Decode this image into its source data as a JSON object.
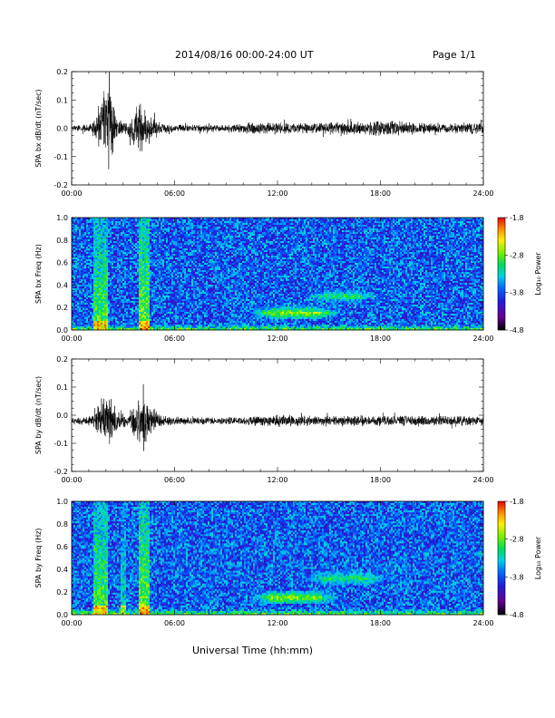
{
  "header": {
    "title": "2014/08/16  00:00-24:00 UT",
    "page": "Page 1/1"
  },
  "xaxis_title": "Universal Time (hh:mm)",
  "colors": {
    "line": "#000000",
    "background": "#ffffff"
  },
  "chart_data": [
    {
      "type": "line",
      "ylabel": "SPA bx dB/dt (nT/sec)",
      "xlim": [
        0,
        24
      ],
      "ylim": [
        -0.2,
        0.2
      ],
      "x_ticks": [
        "00:00",
        "06:00",
        "12:00",
        "18:00",
        "24:00"
      ],
      "y_ticks": [
        "0.2",
        "0.1",
        "0.0",
        "-0.1",
        "-0.2"
      ],
      "baseline": 0.0,
      "envelope": [
        {
          "t": 0.0,
          "amp": 0.01
        },
        {
          "t": 1.2,
          "amp": 0.02
        },
        {
          "t": 1.6,
          "amp": 0.09
        },
        {
          "t": 2.2,
          "amp": 0.2
        },
        {
          "t": 2.6,
          "amp": 0.04
        },
        {
          "t": 3.2,
          "amp": 0.02
        },
        {
          "t": 4.1,
          "amp": 0.11
        },
        {
          "t": 4.5,
          "amp": 0.05
        },
        {
          "t": 5.2,
          "amp": 0.02
        },
        {
          "t": 6.0,
          "amp": 0.015
        },
        {
          "t": 9.0,
          "amp": 0.015
        },
        {
          "t": 11.0,
          "amp": 0.025
        },
        {
          "t": 13.0,
          "amp": 0.02
        },
        {
          "t": 15.5,
          "amp": 0.025
        },
        {
          "t": 18.5,
          "amp": 0.03
        },
        {
          "t": 21.0,
          "amp": 0.02
        },
        {
          "t": 24.0,
          "amp": 0.025
        }
      ]
    },
    {
      "type": "heatmap",
      "ylabel": "SPA bx Freq (Hz)",
      "xlim": [
        0,
        24
      ],
      "ylim": [
        0,
        1.0
      ],
      "x_ticks": [
        "00:00",
        "06:00",
        "12:00",
        "18:00",
        "24:00"
      ],
      "y_ticks": [
        "1.0",
        "0.8",
        "0.6",
        "0.4",
        "0.2",
        "0.0"
      ],
      "colorbar": {
        "label": "Log₁₀ Power",
        "ticks": [
          "-1.8",
          "-2.8",
          "-3.8",
          "-4.8"
        ],
        "range": [
          -4.8,
          -1.8
        ]
      },
      "background_level": -3.75,
      "bursts": [
        {
          "t0": 1.3,
          "t1": 2.1,
          "level": -2.9
        },
        {
          "t0": 3.9,
          "t1": 4.5,
          "level": -2.8
        }
      ],
      "bands": [
        {
          "t0": 10.5,
          "t1": 15.5,
          "f_center": 0.15,
          "f_width": 0.06,
          "level": -2.7
        },
        {
          "t0": 13.5,
          "t1": 18.0,
          "f_center": 0.3,
          "f_width": 0.06,
          "level": -3.0
        }
      ]
    },
    {
      "type": "line",
      "ylabel": "SPA by dB/dt (nT/sec)",
      "xlim": [
        0,
        24
      ],
      "ylim": [
        -0.2,
        0.2
      ],
      "x_ticks": [
        "00:00",
        "06:00",
        "12:00",
        "18:00",
        "24:00"
      ],
      "y_ticks": [
        "0.2",
        "0.1",
        "0.0",
        "-0.1",
        "-0.2"
      ],
      "baseline": -0.02,
      "envelope": [
        {
          "t": 0.0,
          "amp": 0.01
        },
        {
          "t": 1.2,
          "amp": 0.02
        },
        {
          "t": 1.7,
          "amp": 0.08
        },
        {
          "t": 2.2,
          "amp": 0.1
        },
        {
          "t": 2.7,
          "amp": 0.04
        },
        {
          "t": 3.3,
          "amp": 0.02
        },
        {
          "t": 4.2,
          "amp": 0.15
        },
        {
          "t": 4.6,
          "amp": 0.06
        },
        {
          "t": 5.3,
          "amp": 0.02
        },
        {
          "t": 6.0,
          "amp": 0.015
        },
        {
          "t": 10.0,
          "amp": 0.015
        },
        {
          "t": 11.5,
          "amp": 0.025
        },
        {
          "t": 14.0,
          "amp": 0.02
        },
        {
          "t": 16.0,
          "amp": 0.02
        },
        {
          "t": 19.0,
          "amp": 0.02
        },
        {
          "t": 24.0,
          "amp": 0.02
        }
      ]
    },
    {
      "type": "heatmap",
      "ylabel": "SPA by Freq (Hz)",
      "xlim": [
        0,
        24
      ],
      "ylim": [
        0,
        1.0
      ],
      "x_ticks": [
        "00:00",
        "06:00",
        "12:00",
        "18:00",
        "24:00"
      ],
      "y_ticks": [
        "1.0",
        "0.8",
        "0.6",
        "0.4",
        "0.2",
        "0.0"
      ],
      "colorbar": {
        "label": "Log₁₀ Power",
        "ticks": [
          "-1.8",
          "-2.8",
          "-3.8",
          "-4.8"
        ],
        "range": [
          -4.8,
          -1.8
        ]
      },
      "background_level": -3.75,
      "bursts": [
        {
          "t0": 1.3,
          "t1": 2.1,
          "level": -2.9
        },
        {
          "t0": 2.9,
          "t1": 3.2,
          "level": -3.2
        },
        {
          "t0": 3.9,
          "t1": 4.5,
          "level": -2.8
        }
      ],
      "bands": [
        {
          "t0": 10.5,
          "t1": 15.5,
          "f_center": 0.15,
          "f_width": 0.06,
          "level": -2.7
        },
        {
          "t0": 13.5,
          "t1": 18.5,
          "f_center": 0.32,
          "f_width": 0.07,
          "level": -3.0
        }
      ]
    }
  ]
}
